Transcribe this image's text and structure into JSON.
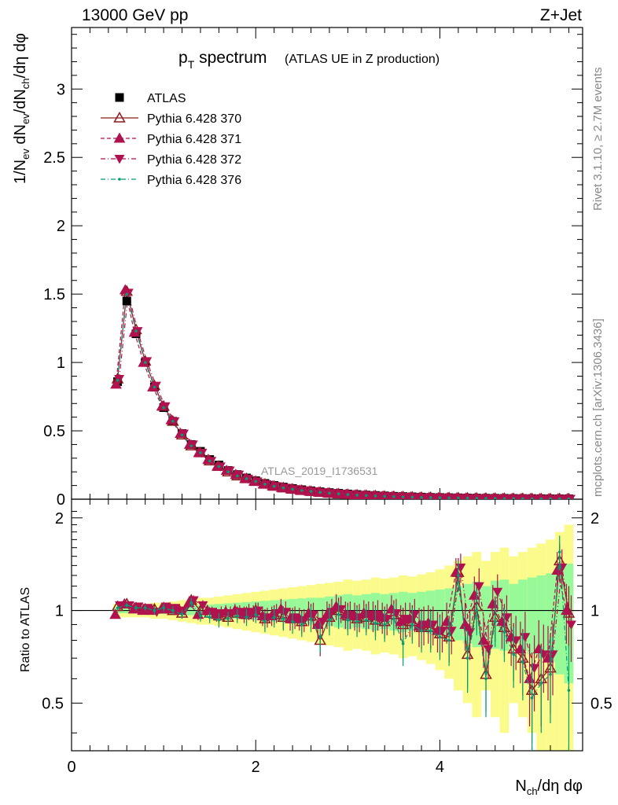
{
  "header": {
    "left": "13000 GeV pp",
    "right": "Z+Jet"
  },
  "side_labels": {
    "rivet": "Rivet 3.1.10, ≥ 2.7M events",
    "mcplots": "mcplots.cern.ch [arXiv:1306.3436]"
  },
  "watermark": "ATLAS_2019_I1736531",
  "chart_data": [
    {
      "type": "scatter",
      "title": "p_T spectrum",
      "title_main": "p",
      "title_sub": "T",
      "title_rest": " spectrum",
      "subtitle": "(ATLAS UE in Z production)",
      "ylabel": "1/N_ev dN_ev/dN_ch/dη dφ",
      "ylim": [
        0,
        3.45
      ],
      "yticks": [
        0,
        0.5,
        1,
        1.5,
        2,
        2.5,
        3
      ],
      "ytick_labels": [
        "0",
        "0.5",
        "1",
        "1.5",
        "2",
        "2.5",
        "3"
      ],
      "xlim": [
        0,
        5.55
      ],
      "legend_position": "top-left",
      "x": [
        0.5,
        0.6,
        0.7,
        0.8,
        0.9,
        1.0,
        1.1,
        1.2,
        1.3,
        1.4,
        1.5,
        1.6,
        1.7,
        1.8,
        1.9,
        2.0,
        2.1,
        2.2,
        2.3,
        2.4,
        2.5,
        2.6,
        2.7,
        2.8,
        2.9,
        3.0,
        3.1,
        3.2,
        3.3,
        3.4,
        3.5,
        3.6,
        3.7,
        3.8,
        3.9,
        4.0,
        4.1,
        4.2,
        4.3,
        4.4,
        4.5,
        4.6,
        4.7,
        4.8,
        4.9,
        5.0,
        5.1,
        5.2,
        5.3,
        5.4
      ],
      "series": [
        {
          "name": "ATLAS",
          "color": "#000000",
          "marker": "square",
          "values": [
            0.86,
            1.45,
            1.21,
            1.0,
            0.82,
            0.67,
            0.57,
            0.48,
            0.4,
            0.35,
            0.29,
            0.25,
            0.21,
            0.18,
            0.155,
            0.135,
            0.115,
            0.1,
            0.088,
            0.078,
            0.069,
            0.061,
            0.054,
            0.048,
            0.043,
            0.038,
            0.034,
            0.03,
            0.027,
            0.024,
            0.021,
            0.019,
            0.017,
            0.015,
            0.013,
            0.012,
            0.011,
            0.01,
            0.009,
            0.008,
            0.007,
            0.0065,
            0.006,
            0.0055,
            0.005,
            0.0045,
            0.004,
            0.0035,
            0.003,
            0.0028
          ]
        },
        {
          "name": "Pythia 6.428 370",
          "color": "#8b1a1a",
          "marker": "triangle-up-open",
          "line": "solid",
          "values": [
            0.88,
            1.52,
            1.24,
            1.01,
            0.83,
            0.68,
            0.57,
            0.47,
            0.39,
            0.34,
            0.28,
            0.24,
            0.2,
            0.17,
            0.15,
            0.13,
            0.11,
            0.095,
            0.083,
            0.073,
            0.064,
            0.057,
            0.05,
            0.044,
            0.039,
            0.034,
            0.03,
            0.027,
            0.024,
            0.021,
            0.019,
            0.017,
            0.015,
            0.013,
            0.012,
            0.011,
            0.01,
            0.009,
            0.008,
            0.007,
            0.006,
            0.0055,
            0.005,
            0.0045,
            0.004,
            0.0035,
            0.003,
            0.003,
            0.003,
            0.0026
          ]
        },
        {
          "name": "Pythia 6.428 371",
          "color": "#b0124f",
          "marker": "triangle-up",
          "line": "dashed",
          "values": [
            0.84,
            1.53,
            1.22,
            1.0,
            0.82,
            0.68,
            0.58,
            0.48,
            0.4,
            0.34,
            0.29,
            0.24,
            0.21,
            0.18,
            0.15,
            0.13,
            0.11,
            0.096,
            0.084,
            0.074,
            0.065,
            0.058,
            0.051,
            0.045,
            0.04,
            0.035,
            0.031,
            0.028,
            0.025,
            0.022,
            0.019,
            0.017,
            0.015,
            0.013,
            0.012,
            0.011,
            0.01,
            0.009,
            0.008,
            0.007,
            0.006,
            0.0055,
            0.005,
            0.0045,
            0.004,
            0.0035,
            0.003,
            0.003,
            0.003,
            0.0026
          ]
        },
        {
          "name": "Pythia 6.428 372",
          "color": "#b0124f",
          "marker": "triangle-down",
          "line": "dashdot",
          "values": [
            0.88,
            1.51,
            1.23,
            1.01,
            0.83,
            0.68,
            0.57,
            0.48,
            0.4,
            0.34,
            0.28,
            0.24,
            0.21,
            0.18,
            0.15,
            0.13,
            0.11,
            0.096,
            0.084,
            0.074,
            0.065,
            0.058,
            0.051,
            0.045,
            0.04,
            0.035,
            0.031,
            0.028,
            0.025,
            0.022,
            0.019,
            0.017,
            0.015,
            0.013,
            0.012,
            0.011,
            0.01,
            0.009,
            0.008,
            0.007,
            0.006,
            0.0055,
            0.005,
            0.0045,
            0.004,
            0.0035,
            0.003,
            0.003,
            0.003,
            0.0026
          ]
        },
        {
          "name": "Pythia 6.428 376",
          "color": "#009e73",
          "marker": "dot",
          "line": "dashdot",
          "values": [
            0.87,
            1.5,
            1.23,
            1.0,
            0.82,
            0.67,
            0.57,
            0.47,
            0.39,
            0.34,
            0.28,
            0.24,
            0.2,
            0.17,
            0.15,
            0.13,
            0.11,
            0.095,
            0.083,
            0.073,
            0.064,
            0.057,
            0.05,
            0.044,
            0.039,
            0.034,
            0.03,
            0.027,
            0.024,
            0.021,
            0.019,
            0.017,
            0.015,
            0.013,
            0.012,
            0.011,
            0.01,
            0.009,
            0.008,
            0.007,
            0.006,
            0.0055,
            0.005,
            0.0045,
            0.004,
            0.0035,
            0.003,
            0.003,
            0.003,
            0.0026
          ]
        }
      ]
    },
    {
      "type": "scatter",
      "ylabel": "Ratio to ATLAS",
      "xlabel": "N_ch/dη dφ",
      "xlim": [
        0,
        5.55
      ],
      "ylim": [
        0.35,
        2.3
      ],
      "yscale": "log",
      "xticks": [
        0,
        2,
        4
      ],
      "xtick_labels": [
        "0",
        "2",
        "4"
      ],
      "yticks": [
        0.5,
        1,
        2
      ],
      "ytick_labels": [
        "0.5",
        "1",
        "2"
      ],
      "band_colors": {
        "inner": "#98f998",
        "outer": "#fbfb8c"
      },
      "reference_line": 1,
      "x": [
        0.5,
        0.6,
        0.7,
        0.8,
        0.9,
        1.0,
        1.1,
        1.2,
        1.3,
        1.4,
        1.5,
        1.6,
        1.7,
        1.8,
        1.9,
        2.0,
        2.1,
        2.2,
        2.3,
        2.4,
        2.5,
        2.6,
        2.7,
        2.8,
        2.9,
        3.0,
        3.1,
        3.2,
        3.3,
        3.4,
        3.5,
        3.6,
        3.7,
        3.8,
        3.9,
        4.0,
        4.1,
        4.2,
        4.3,
        4.4,
        4.5,
        4.6,
        4.7,
        4.8,
        4.9,
        5.0,
        5.1,
        5.2,
        5.3,
        5.4
      ],
      "uncertainty_inner": [
        0.02,
        0.02,
        0.02,
        0.02,
        0.02,
        0.025,
        0.03,
        0.03,
        0.035,
        0.04,
        0.045,
        0.05,
        0.055,
        0.06,
        0.065,
        0.07,
        0.075,
        0.08,
        0.085,
        0.09,
        0.095,
        0.1,
        0.1,
        0.11,
        0.12,
        0.13,
        0.12,
        0.13,
        0.14,
        0.13,
        0.14,
        0.15,
        0.14,
        0.15,
        0.16,
        0.17,
        0.18,
        0.2,
        0.22,
        0.24,
        0.2,
        0.25,
        0.26,
        0.22,
        0.26,
        0.28,
        0.3,
        0.32,
        0.38,
        0.42
      ],
      "uncertainty_outer": [
        0.05,
        0.05,
        0.05,
        0.05,
        0.06,
        0.06,
        0.07,
        0.08,
        0.09,
        0.1,
        0.1,
        0.11,
        0.12,
        0.13,
        0.14,
        0.15,
        0.16,
        0.17,
        0.18,
        0.19,
        0.2,
        0.21,
        0.22,
        0.23,
        0.24,
        0.26,
        0.25,
        0.26,
        0.28,
        0.27,
        0.28,
        0.3,
        0.29,
        0.31,
        0.33,
        0.36,
        0.4,
        0.45,
        0.5,
        0.55,
        0.45,
        0.55,
        0.6,
        0.5,
        0.55,
        0.6,
        0.65,
        0.7,
        0.8,
        0.9
      ],
      "series": [
        {
          "name": "Pythia 6.428 370",
          "values": [
            1.03,
            1.05,
            1.02,
            1.01,
            1.01,
            1.02,
            1.0,
            0.98,
            1.08,
            1.0,
            0.98,
            0.96,
            0.95,
            0.98,
            0.97,
            1.0,
            0.94,
            0.97,
            0.95,
            0.94,
            0.92,
            0.96,
            0.8,
            0.95,
            1.0,
            0.96,
            0.94,
            0.95,
            0.93,
            0.92,
            0.97,
            0.9,
            0.92,
            0.88,
            0.88,
            0.84,
            0.82,
            1.33,
            0.72,
            1.03,
            0.62,
            0.95,
            0.88,
            0.75,
            0.7,
            0.55,
            0.6,
            0.65,
            1.45,
            0.98
          ],
          "err": [
            0.02,
            0.02,
            0.02,
            0.02,
            0.03,
            0.03,
            0.03,
            0.03,
            0.04,
            0.04,
            0.04,
            0.05,
            0.05,
            0.05,
            0.06,
            0.06,
            0.07,
            0.07,
            0.08,
            0.08,
            0.08,
            0.09,
            0.09,
            0.1,
            0.1,
            0.1,
            0.1,
            0.1,
            0.11,
            0.11,
            0.11,
            0.12,
            0.12,
            0.13,
            0.13,
            0.13,
            0.14,
            0.15,
            0.16,
            0.17,
            0.15,
            0.16,
            0.17,
            0.16,
            0.17,
            0.18,
            0.18,
            0.19,
            0.2,
            0.22
          ]
        },
        {
          "name": "Pythia 6.428 371",
          "values": [
            0.97,
            1.05,
            1.01,
            1.0,
            1.0,
            1.01,
            1.01,
            1.0,
            1.06,
            0.97,
            1.0,
            0.97,
            0.99,
            1.0,
            0.97,
            0.98,
            0.96,
            0.96,
            1.01,
            0.94,
            0.94,
            0.98,
            0.9,
            0.97,
            1.03,
            0.97,
            0.96,
            0.98,
            0.96,
            0.95,
            1.01,
            0.92,
            0.94,
            0.89,
            0.91,
            0.86,
            0.92,
            1.33,
            0.9,
            1.12,
            0.8,
            1.05,
            0.92,
            0.82,
            0.75,
            0.6,
            0.75,
            0.7,
            1.35,
            1.0
          ],
          "err": [
            0.02,
            0.02,
            0.02,
            0.02,
            0.03,
            0.03,
            0.03,
            0.03,
            0.04,
            0.04,
            0.04,
            0.05,
            0.05,
            0.05,
            0.06,
            0.06,
            0.07,
            0.07,
            0.08,
            0.08,
            0.08,
            0.09,
            0.09,
            0.1,
            0.1,
            0.1,
            0.1,
            0.1,
            0.11,
            0.11,
            0.11,
            0.12,
            0.12,
            0.13,
            0.13,
            0.13,
            0.14,
            0.15,
            0.16,
            0.17,
            0.15,
            0.16,
            0.17,
            0.16,
            0.17,
            0.18,
            0.18,
            0.19,
            0.2,
            0.22
          ]
        },
        {
          "name": "Pythia 6.428 372",
          "values": [
            1.04,
            1.04,
            1.03,
            1.02,
            0.99,
            1.03,
            1.02,
            1.0,
            1.08,
            1.04,
            0.99,
            0.98,
            0.98,
            0.99,
            0.99,
            1.0,
            0.95,
            0.98,
            0.99,
            0.95,
            0.93,
            0.97,
            0.92,
            0.99,
            1.01,
            0.97,
            0.95,
            0.97,
            0.97,
            0.94,
            0.98,
            0.94,
            0.97,
            0.9,
            0.9,
            0.86,
            0.86,
            1.38,
            0.85,
            1.2,
            0.75,
            1.15,
            0.95,
            0.8,
            0.82,
            0.65,
            0.72,
            0.72,
            1.38,
            0.9
          ],
          "err": [
            0.02,
            0.02,
            0.02,
            0.02,
            0.03,
            0.03,
            0.03,
            0.03,
            0.04,
            0.04,
            0.04,
            0.05,
            0.05,
            0.05,
            0.06,
            0.06,
            0.07,
            0.07,
            0.08,
            0.08,
            0.08,
            0.09,
            0.09,
            0.1,
            0.1,
            0.1,
            0.1,
            0.1,
            0.11,
            0.11,
            0.11,
            0.12,
            0.12,
            0.13,
            0.13,
            0.13,
            0.14,
            0.15,
            0.16,
            0.17,
            0.15,
            0.16,
            0.17,
            0.16,
            0.17,
            0.18,
            0.18,
            0.19,
            0.2,
            0.22
          ]
        },
        {
          "name": "Pythia 6.428 376",
          "values": [
            1.02,
            1.04,
            1.02,
            1.02,
            1.0,
            1.02,
            1.0,
            0.97,
            1.06,
            0.96,
            0.95,
            0.93,
            0.94,
            0.96,
            0.95,
            0.97,
            0.92,
            0.95,
            0.94,
            0.92,
            0.9,
            0.94,
            0.82,
            0.93,
            0.97,
            0.93,
            0.92,
            0.93,
            0.91,
            0.9,
            0.94,
            0.78,
            0.9,
            0.86,
            0.86,
            0.82,
            0.8,
            1.3,
            0.7,
            1.0,
            0.6,
            0.92,
            0.85,
            0.72,
            0.68,
            0.52,
            0.58,
            0.62,
            1.55,
            0.55
          ],
          "err": [
            0.02,
            0.02,
            0.02,
            0.02,
            0.03,
            0.03,
            0.03,
            0.03,
            0.04,
            0.04,
            0.04,
            0.05,
            0.05,
            0.05,
            0.06,
            0.06,
            0.07,
            0.07,
            0.08,
            0.08,
            0.08,
            0.09,
            0.09,
            0.1,
            0.1,
            0.1,
            0.1,
            0.1,
            0.11,
            0.11,
            0.11,
            0.12,
            0.12,
            0.13,
            0.13,
            0.13,
            0.14,
            0.15,
            0.16,
            0.17,
            0.15,
            0.16,
            0.17,
            0.16,
            0.17,
            0.18,
            0.18,
            0.19,
            0.2,
            0.22
          ]
        }
      ]
    }
  ]
}
